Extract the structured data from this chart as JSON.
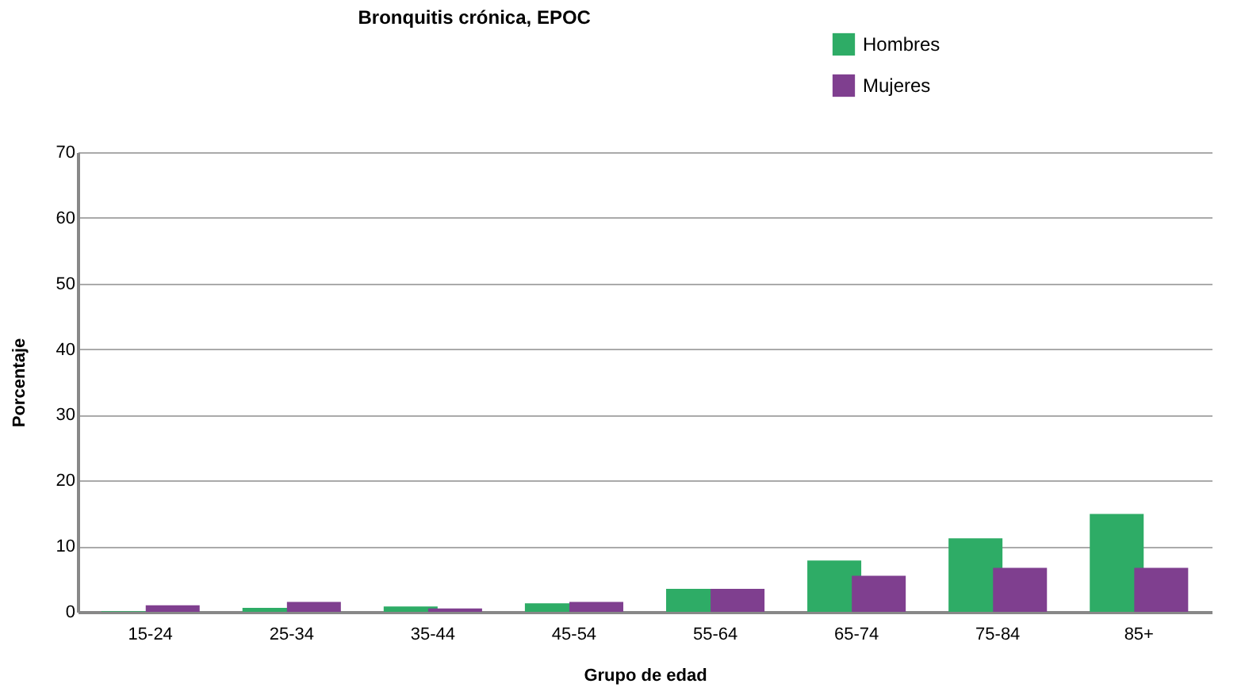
{
  "chart_data": {
    "type": "bar",
    "title": "Bronquitis crónica, EPOC",
    "xlabel": "Grupo de edad",
    "ylabel": "Porcentaje",
    "categories": [
      "15-24",
      "25-34",
      "35-44",
      "45-54",
      "55-64",
      "65-74",
      "75-84",
      "85+"
    ],
    "series": [
      {
        "name": "Hombres",
        "color": "#2eac66",
        "values": [
          0.1,
          0.6,
          0.8,
          1.3,
          3.5,
          7.8,
          11.2,
          14.9
        ]
      },
      {
        "name": "Mujeres",
        "color": "#7f3f8f",
        "values": [
          1.0,
          1.5,
          0.5,
          1.5,
          3.5,
          5.5,
          6.7,
          6.7
        ]
      }
    ],
    "ylim": [
      0,
      70
    ],
    "yticks": [
      0,
      10,
      20,
      30,
      40,
      50,
      60,
      70
    ],
    "grid": "y",
    "legend": "top right"
  }
}
